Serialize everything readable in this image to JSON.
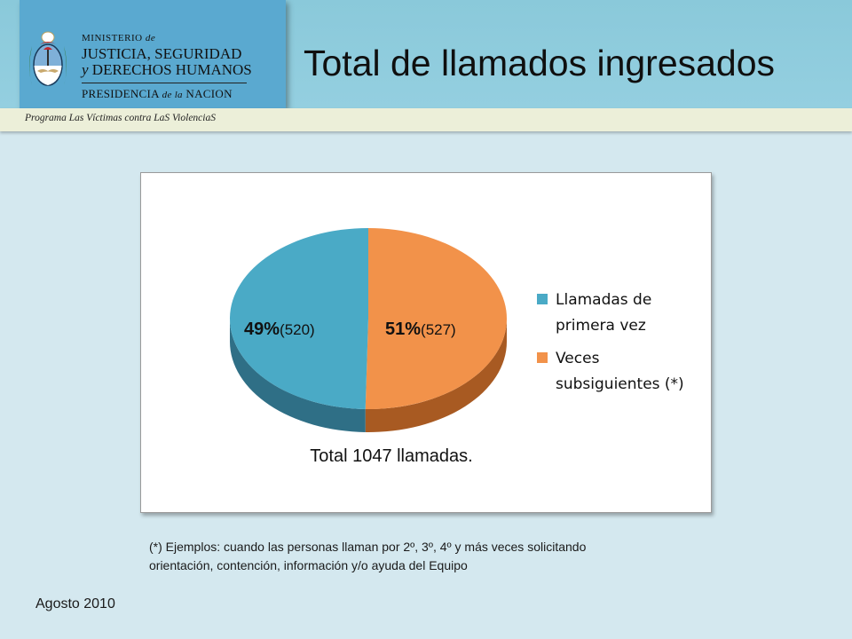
{
  "header": {
    "ministry_line1": "MINISTERIO",
    "ministry_line1_suffix": "de",
    "ministry_line2": "JUSTICIA, SEGURIDAD",
    "ministry_line3_prefix": "y",
    "ministry_line3": "DERECHOS HUMANOS",
    "presidency": "PRESIDENCIA",
    "presidency_mid": "de la",
    "presidency_end": "NACION",
    "program": "Programa Las Víctimas contra LaS ViolenciaS"
  },
  "slide": {
    "title": "Total de llamados ingresados",
    "footnote_line1": "(*) Ejemplos: cuando las personas llaman por 2º, 3º, 4º y más veces solicitando",
    "footnote_line2": "orientación, contención, información y/o ayuda del Equipo",
    "date": "Agosto 2010"
  },
  "chart_data": {
    "type": "pie",
    "style": "3d-oval",
    "categories": [
      "Llamadas de primera vez",
      "Veces subsiguientes (*)"
    ],
    "values": [
      520,
      527
    ],
    "percent_labels": [
      "49%",
      "51%"
    ],
    "count_labels": [
      "(520)",
      "(527)"
    ],
    "colors": [
      "#4aaac6",
      "#f2924a"
    ],
    "side_colors": [
      "#2f6f86",
      "#a85a22"
    ],
    "legend": {
      "placement": "right",
      "entries": [
        {
          "lines": [
            "Llamadas de",
            "primera vez"
          ]
        },
        {
          "lines": [
            "Veces",
            "subsiguientes (*)"
          ]
        }
      ]
    },
    "annotation": "Total 1047 llamadas."
  }
}
